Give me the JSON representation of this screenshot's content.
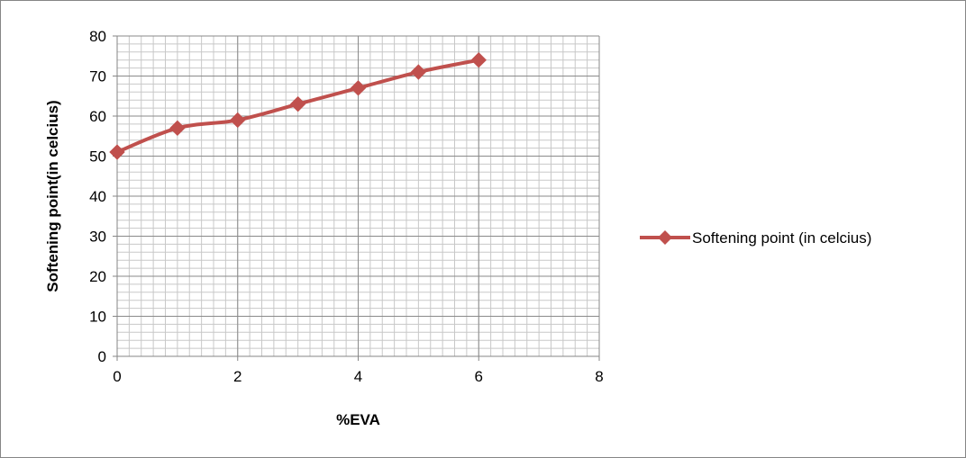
{
  "chart_data": {
    "type": "line",
    "title": "",
    "xlabel": "%EVA",
    "ylabel": "Softening point(in celcius)",
    "xlim": [
      0,
      8
    ],
    "ylim": [
      0,
      80
    ],
    "x_ticks": [
      0,
      2,
      4,
      6,
      8
    ],
    "x_tick_labels": [
      "0",
      "2",
      "4",
      "6",
      "8"
    ],
    "y_ticks": [
      0,
      10,
      20,
      30,
      40,
      50,
      60,
      70,
      80
    ],
    "y_tick_labels": [
      "0",
      "10",
      "20",
      "30",
      "40",
      "50",
      "60",
      "70",
      "80"
    ],
    "grid": true,
    "minor_grid": true,
    "legend_position": "right",
    "series": [
      {
        "name": "Softening point (in celcius)",
        "color": "#C0504D",
        "marker": "diamond",
        "x": [
          0,
          1,
          2,
          3,
          4,
          5,
          6
        ],
        "y": [
          51,
          57,
          59,
          63,
          67,
          71,
          74
        ]
      }
    ]
  }
}
